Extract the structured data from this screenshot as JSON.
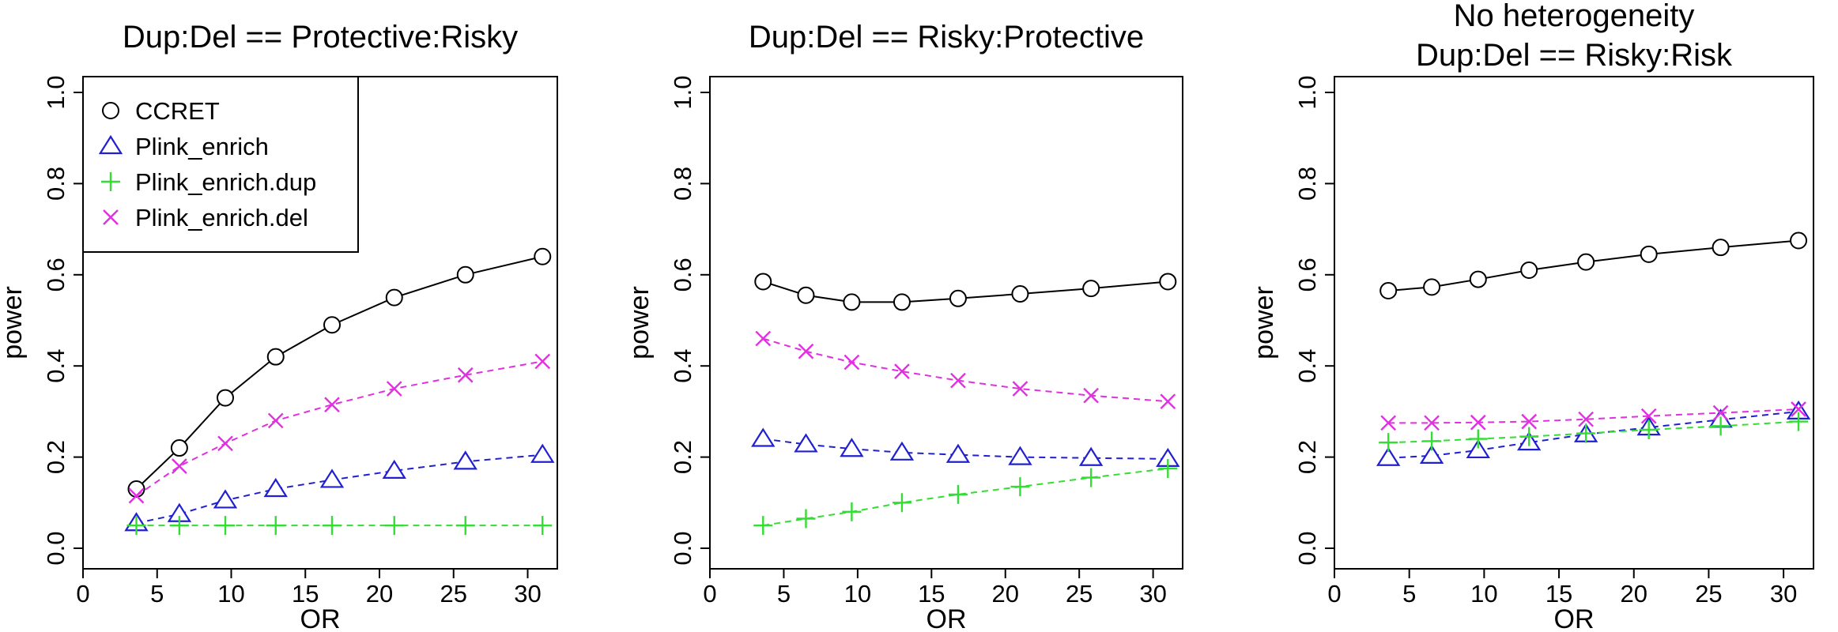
{
  "chart_data": [
    {
      "type": "line",
      "title": "Dup:Del == Protective:Risky",
      "xlabel": "OR",
      "ylabel": "power",
      "xlim": [
        0,
        32
      ],
      "ylim": [
        0,
        1
      ],
      "xticks": [
        "0",
        "5",
        "10",
        "15",
        "20",
        "25",
        "30"
      ],
      "yticks": [
        "0.0",
        "0.2",
        "0.4",
        "0.6",
        "0.8",
        "1.0"
      ],
      "x": [
        3.6,
        6.5,
        9.6,
        13.0,
        16.8,
        21.0,
        25.8,
        31.0
      ],
      "legend": {
        "placement": "top-left",
        "entries": [
          "CCRET",
          "Plink_enrich",
          "Plink_enrich.dup",
          "Plink_enrich.del"
        ]
      },
      "series": [
        {
          "name": "CCRET",
          "color": "#000000",
          "marker": "circle",
          "linestyle": "solid",
          "values": [
            0.13,
            0.22,
            0.33,
            0.42,
            0.49,
            0.55,
            0.6,
            0.64
          ]
        },
        {
          "name": "Plink_enrich",
          "color": "#2020d0",
          "marker": "triangle",
          "linestyle": "dashed",
          "values": [
            0.055,
            0.075,
            0.105,
            0.13,
            0.15,
            0.17,
            0.19,
            0.205
          ]
        },
        {
          "name": "Plink_enrich.dup",
          "color": "#33dd33",
          "marker": "plus",
          "linestyle": "dashed",
          "values": [
            0.05,
            0.05,
            0.05,
            0.05,
            0.05,
            0.05,
            0.05,
            0.05
          ]
        },
        {
          "name": "Plink_enrich.del",
          "color": "#e030e0",
          "marker": "cross",
          "linestyle": "dashed",
          "values": [
            0.115,
            0.18,
            0.23,
            0.28,
            0.315,
            0.35,
            0.38,
            0.41
          ]
        }
      ]
    },
    {
      "type": "line",
      "title": "Dup:Del == Risky:Protective",
      "xlabel": "OR",
      "ylabel": "power",
      "xlim": [
        0,
        32
      ],
      "ylim": [
        0,
        1
      ],
      "xticks": [
        "0",
        "5",
        "10",
        "15",
        "20",
        "25",
        "30"
      ],
      "yticks": [
        "0.0",
        "0.2",
        "0.4",
        "0.6",
        "0.8",
        "1.0"
      ],
      "x": [
        3.6,
        6.5,
        9.6,
        13.0,
        16.8,
        21.0,
        25.8,
        31.0
      ],
      "series": [
        {
          "name": "CCRET",
          "color": "#000000",
          "marker": "circle",
          "linestyle": "solid",
          "values": [
            0.585,
            0.555,
            0.54,
            0.54,
            0.548,
            0.558,
            0.57,
            0.585
          ]
        },
        {
          "name": "Plink_enrich",
          "color": "#2020d0",
          "marker": "triangle",
          "linestyle": "dashed",
          "values": [
            0.24,
            0.228,
            0.218,
            0.21,
            0.205,
            0.2,
            0.198,
            0.196
          ]
        },
        {
          "name": "Plink_enrich.dup",
          "color": "#33dd33",
          "marker": "plus",
          "linestyle": "dashed",
          "values": [
            0.05,
            0.065,
            0.08,
            0.1,
            0.118,
            0.135,
            0.155,
            0.175
          ]
        },
        {
          "name": "Plink_enrich.del",
          "color": "#e030e0",
          "marker": "cross",
          "linestyle": "dashed",
          "values": [
            0.46,
            0.432,
            0.408,
            0.388,
            0.368,
            0.35,
            0.335,
            0.322
          ]
        }
      ]
    },
    {
      "type": "line",
      "title": [
        "No heterogeneity",
        "Dup:Del == Risky:Risk"
      ],
      "xlabel": "OR",
      "ylabel": "power",
      "xlim": [
        0,
        32
      ],
      "ylim": [
        0,
        1
      ],
      "xticks": [
        "0",
        "5",
        "10",
        "15",
        "20",
        "25",
        "30"
      ],
      "yticks": [
        "0.0",
        "0.2",
        "0.4",
        "0.6",
        "0.8",
        "1.0"
      ],
      "x": [
        3.6,
        6.5,
        9.6,
        13.0,
        16.8,
        21.0,
        25.8,
        31.0
      ],
      "series": [
        {
          "name": "CCRET",
          "color": "#000000",
          "marker": "circle",
          "linestyle": "solid",
          "values": [
            0.565,
            0.573,
            0.59,
            0.61,
            0.628,
            0.645,
            0.66,
            0.675
          ]
        },
        {
          "name": "Plink_enrich",
          "color": "#2020d0",
          "marker": "triangle",
          "linestyle": "dashed",
          "values": [
            0.198,
            0.203,
            0.215,
            0.232,
            0.25,
            0.265,
            0.282,
            0.3
          ]
        },
        {
          "name": "Plink_enrich.dup",
          "color": "#33dd33",
          "marker": "plus",
          "linestyle": "dashed",
          "values": [
            0.232,
            0.235,
            0.24,
            0.245,
            0.252,
            0.26,
            0.268,
            0.278
          ]
        },
        {
          "name": "Plink_enrich.del",
          "color": "#e030e0",
          "marker": "cross",
          "linestyle": "dashed",
          "values": [
            0.275,
            0.275,
            0.276,
            0.278,
            0.283,
            0.29,
            0.297,
            0.305
          ]
        }
      ]
    }
  ]
}
